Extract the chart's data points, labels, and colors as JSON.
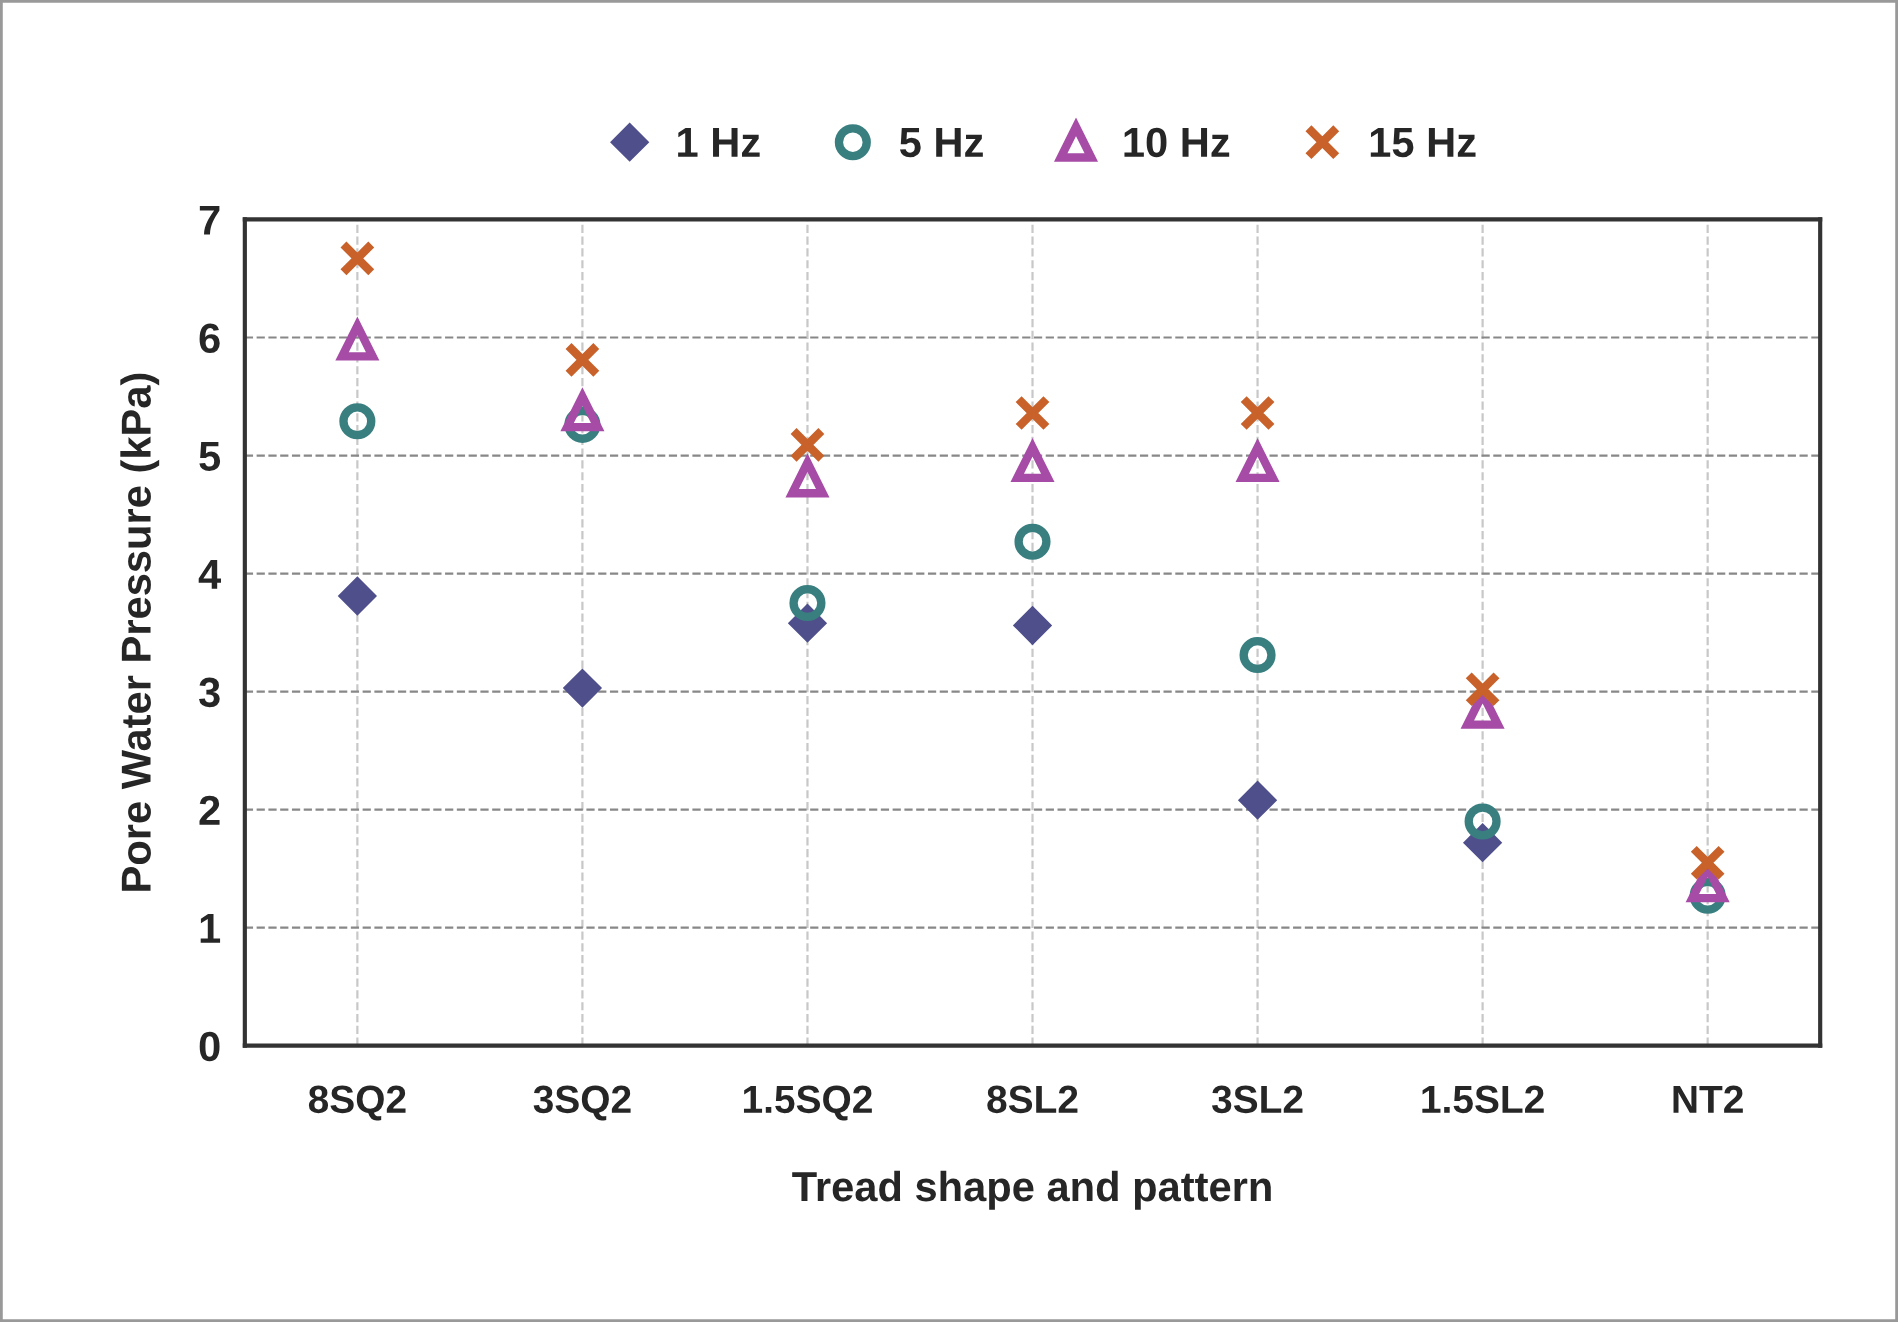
{
  "chart_data": {
    "type": "scatter",
    "xlabel": "Tread shape and pattern",
    "ylabel": "Pore Water Pressure (kPa)",
    "categories": [
      "8SQ2",
      "3SQ2",
      "1.5SQ2",
      "8SL2",
      "3SL2",
      "1.5SL2",
      "NT2"
    ],
    "series": [
      {
        "name": "1 Hz",
        "color": "#4f4f8c",
        "marker": "diamond",
        "values": [
          3.81,
          3.03,
          3.58,
          3.56,
          2.08,
          1.72,
          null
        ]
      },
      {
        "name": "5 Hz",
        "color": "#3a7f80",
        "marker": "circle",
        "values": [
          5.29,
          5.26,
          3.75,
          4.27,
          3.31,
          1.9,
          1.27
        ]
      },
      {
        "name": "10 Hz",
        "color": "#a64ca6",
        "marker": "triangle",
        "values": [
          5.97,
          5.37,
          4.81,
          4.94,
          4.94,
          2.85,
          1.38
        ]
      },
      {
        "name": "15 Hz",
        "color": "#c8622a",
        "marker": "cross",
        "values": [
          6.67,
          5.81,
          5.09,
          5.36,
          5.36,
          3.02,
          1.55
        ]
      }
    ],
    "ylim": [
      0,
      7
    ],
    "yticks": [
      0,
      1,
      2,
      3,
      4,
      5,
      6,
      7
    ],
    "grid": true,
    "legend": "top"
  }
}
